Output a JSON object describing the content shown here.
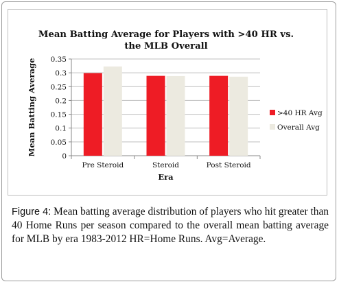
{
  "chart_data": {
    "type": "bar",
    "title_line1": "Mean Batting Average for Players with >40 HR vs.",
    "title_line2": "the MLB Overall",
    "xlabel": "Era",
    "ylabel": "Mean Batting Average",
    "categories": [
      "Pre Steroid",
      "Steroid",
      "Post Steroid"
    ],
    "series": [
      {
        "name": ">40 HR Avg",
        "color": "#ee1c25",
        "values": [
          0.299,
          0.289,
          0.289
        ]
      },
      {
        "name": "Overall Avg",
        "color": "#eceae0",
        "values": [
          0.323,
          0.288,
          0.286
        ]
      }
    ],
    "ylim": [
      0,
      0.35
    ],
    "yticks": [
      "0",
      "0.05",
      "0.1",
      "0.15",
      "0.2",
      "0.25",
      "0.3",
      "0.35"
    ],
    "grid": true,
    "legend": "right"
  },
  "caption": {
    "label": "Figure 4:",
    "text": " Mean batting average distribution of players who hit greater than 40 Home Runs per season compared to the overall mean batting average for MLB by era 1983-2012 HR=Home Runs. Avg=Average."
  }
}
